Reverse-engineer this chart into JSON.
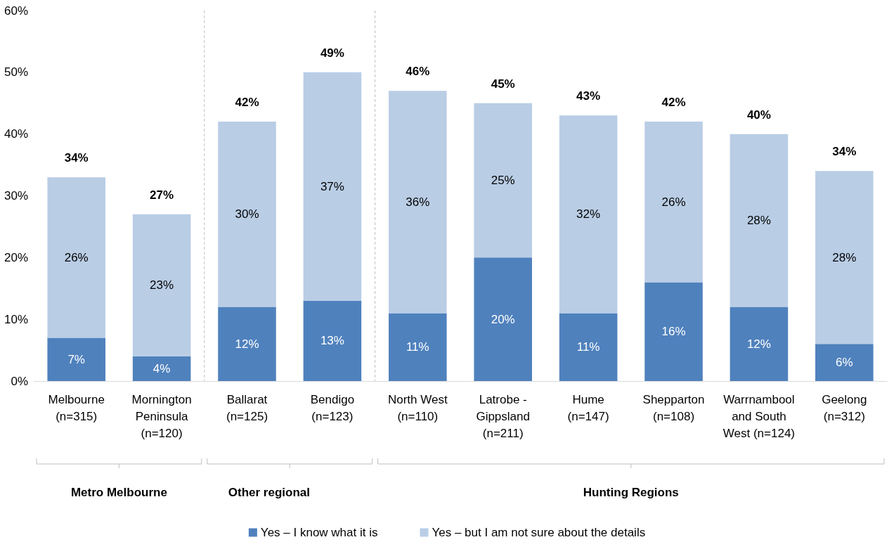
{
  "chart_data": {
    "type": "bar",
    "stacked": true,
    "categories": [
      "Melbourne\n(n=315)",
      "Mornington\nPeninsula\n(n=120)",
      "Ballarat\n(n=125)",
      "Bendigo\n(n=123)",
      "North West\n(n=110)",
      "Latrobe -\nGippsland\n(n=211)",
      "Hume\n(n=147)",
      "Shepparton\n(n=108)",
      "Warrnambool\nand South\nWest (n=124)",
      "Geelong\n(n=312)"
    ],
    "series": [
      {
        "name": "Yes – I know what it is",
        "color": "#4f81bd",
        "values": [
          7,
          4,
          12,
          13,
          11,
          20,
          11,
          16,
          12,
          6
        ],
        "value_labels": [
          "7%",
          "4%",
          "12%",
          "13%",
          "11%",
          "20%",
          "11%",
          "16%",
          "12%",
          "6%"
        ]
      },
      {
        "name": "Yes – but I am not sure about the details",
        "color": "#b9cde5",
        "values": [
          26,
          23,
          30,
          37,
          36,
          25,
          32,
          26,
          28,
          28
        ],
        "value_labels": [
          "26%",
          "23%",
          "30%",
          "37%",
          "36%",
          "25%",
          "32%",
          "26%",
          "28%",
          "28%"
        ]
      }
    ],
    "totals": [
      "34%",
      "27%",
      "42%",
      "49%",
      "46%",
      "45%",
      "43%",
      "42%",
      "40%",
      "34%"
    ],
    "annotations": [
      "Metro Melbourne",
      "Other regional",
      "Hunting Regions"
    ],
    "ylim": [
      0,
      60
    ],
    "yticks": [
      {
        "value": 0,
        "label": "0%"
      },
      {
        "value": 10,
        "label": "10%"
      },
      {
        "value": 20,
        "label": "20%"
      },
      {
        "value": 30,
        "label": "30%"
      },
      {
        "value": 40,
        "label": "40%"
      },
      {
        "value": 50,
        "label": "50%"
      },
      {
        "value": 60,
        "label": "60%"
      }
    ],
    "grid": false,
    "legend": "bottom"
  }
}
